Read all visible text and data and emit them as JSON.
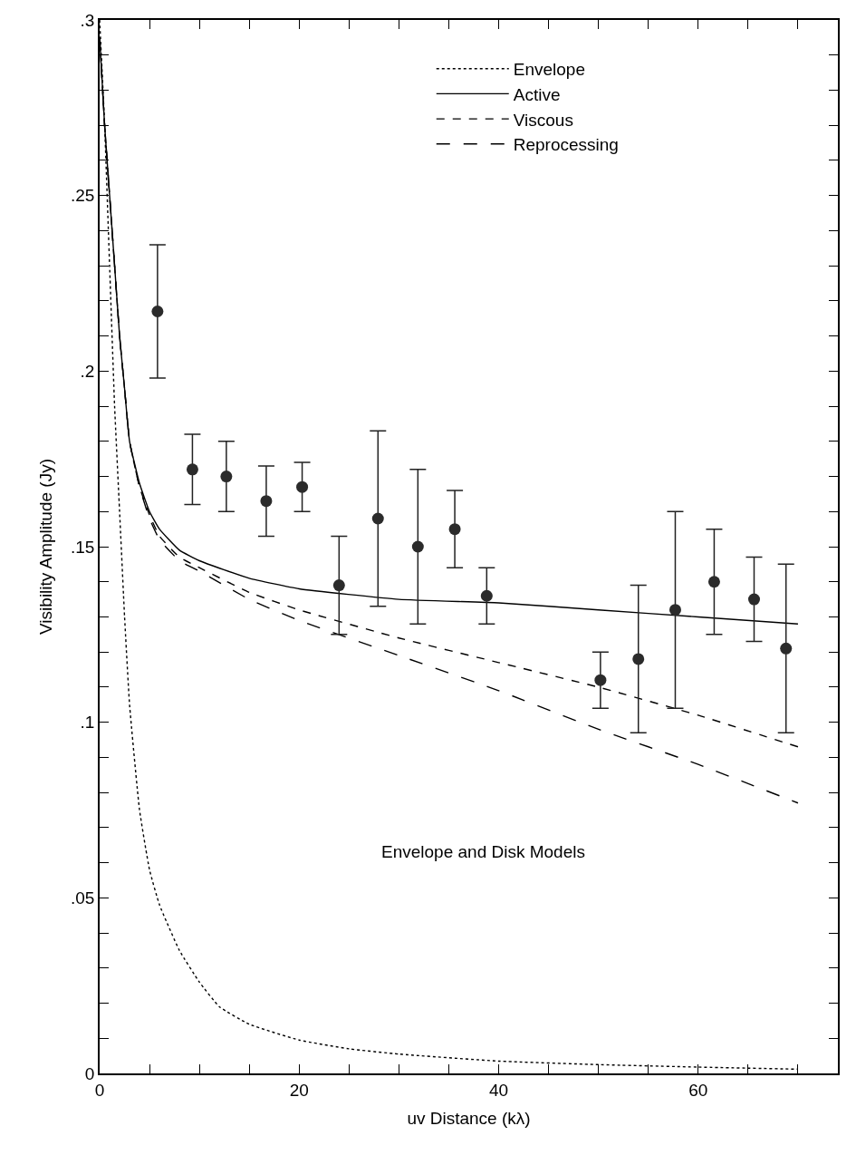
{
  "chart_data": {
    "type": "line",
    "xlabel": "uv Distance (kλ)",
    "ylabel": "Visibility Amplitude (Jy)",
    "annotations": [
      "Envelope and Disk Models"
    ],
    "xlim": [
      0,
      74
    ],
    "ylim": [
      0,
      0.3
    ],
    "xticks": [
      0,
      {
        "value": 5,
        "label": null
      },
      {
        "value": 10,
        "label": null
      },
      {
        "value": 15,
        "label": null
      },
      20,
      {
        "value": 25,
        "label": null
      },
      {
        "value": 30,
        "label": null
      },
      {
        "value": 35,
        "label": null
      },
      40,
      {
        "value": 45,
        "label": null
      },
      {
        "value": 50,
        "label": null
      },
      {
        "value": 55,
        "label": null
      },
      60,
      {
        "value": 65,
        "label": null
      },
      {
        "value": 70,
        "label": null
      }
    ],
    "yticks": [
      0,
      {
        "value": 0.01,
        "label": null
      },
      {
        "value": 0.02,
        "label": null
      },
      {
        "value": 0.03,
        "label": null
      },
      {
        "value": 0.04,
        "label": null
      },
      {
        "value": 0.05,
        "label": ".05"
      },
      {
        "value": 0.06,
        "label": null
      },
      {
        "value": 0.07,
        "label": null
      },
      {
        "value": 0.08,
        "label": null
      },
      {
        "value": 0.09,
        "label": null
      },
      {
        "value": 0.1,
        "label": ".1"
      },
      {
        "value": 0.11,
        "label": null
      },
      {
        "value": 0.12,
        "label": null
      },
      {
        "value": 0.13,
        "label": null
      },
      {
        "value": 0.14,
        "label": null
      },
      {
        "value": 0.15,
        "label": ".15"
      },
      {
        "value": 0.16,
        "label": null
      },
      {
        "value": 0.17,
        "label": null
      },
      {
        "value": 0.18,
        "label": null
      },
      {
        "value": 0.19,
        "label": null
      },
      {
        "value": 0.2,
        "label": ".2"
      },
      {
        "value": 0.21,
        "label": null
      },
      {
        "value": 0.22,
        "label": null
      },
      {
        "value": 0.23,
        "label": null
      },
      {
        "value": 0.24,
        "label": null
      },
      {
        "value": 0.25,
        "label": ".25"
      },
      {
        "value": 0.26,
        "label": null
      },
      {
        "value": 0.27,
        "label": null
      },
      {
        "value": 0.28,
        "label": null
      },
      {
        "value": 0.29,
        "label": null
      },
      {
        "value": 0.3,
        "label": ".3"
      }
    ],
    "legend": "top right",
    "marker": "none",
    "series": [
      {
        "name": "Envelope",
        "color": "#000000",
        "line_style": "dotted",
        "x": [
          0,
          0.5,
          1,
          1.5,
          2,
          2.5,
          3,
          4,
          5,
          6,
          8,
          10,
          12,
          15,
          20,
          25,
          30,
          40,
          50,
          60,
          70
        ],
        "values": [
          0.3,
          0.27,
          0.23,
          0.19,
          0.16,
          0.13,
          0.105,
          0.075,
          0.058,
          0.048,
          0.035,
          0.026,
          0.019,
          0.014,
          0.0095,
          0.007,
          0.0055,
          0.0035,
          0.0025,
          0.0018,
          0.0012
        ]
      },
      {
        "name": "Active",
        "color": "#000000",
        "line_style": "solid",
        "x": [
          0,
          0.5,
          1,
          1.5,
          2,
          2.5,
          3,
          4,
          5,
          6,
          8,
          10,
          15,
          20,
          30,
          40,
          50,
          60,
          70
        ],
        "values": [
          0.295,
          0.27,
          0.25,
          0.23,
          0.21,
          0.195,
          0.18,
          0.168,
          0.16,
          0.155,
          0.149,
          0.146,
          0.141,
          0.138,
          0.135,
          0.134,
          0.132,
          0.13,
          0.128
        ]
      },
      {
        "name": "Viscous",
        "color": "#000000",
        "line_style": "dashed",
        "x": [
          0,
          0.5,
          1,
          1.5,
          2,
          2.5,
          3,
          4,
          5,
          6,
          8,
          10,
          15,
          20,
          30,
          40,
          50,
          60,
          70
        ],
        "values": [
          0.295,
          0.27,
          0.25,
          0.23,
          0.21,
          0.195,
          0.18,
          0.167,
          0.159,
          0.153,
          0.147,
          0.144,
          0.137,
          0.132,
          0.124,
          0.117,
          0.11,
          0.102,
          0.093
        ]
      },
      {
        "name": "Reprocessing",
        "color": "#000000",
        "line_style": "longdash",
        "x": [
          0,
          0.5,
          1,
          1.5,
          2,
          2.5,
          3,
          4,
          5,
          6,
          8,
          10,
          15,
          20,
          30,
          40,
          50,
          60,
          70
        ],
        "values": [
          0.295,
          0.27,
          0.25,
          0.23,
          0.21,
          0.195,
          0.18,
          0.167,
          0.158,
          0.152,
          0.146,
          0.143,
          0.135,
          0.129,
          0.119,
          0.109,
          0.098,
          0.088,
          0.077
        ]
      },
      {
        "type": "scatter",
        "marker": "circle",
        "color": "#2b2b2b",
        "x": [
          5.8,
          9.3,
          12.7,
          16.7,
          20.3,
          24.0,
          27.9,
          31.9,
          35.6,
          38.8,
          50.2,
          54.0,
          57.7,
          61.6,
          65.6,
          68.8
        ],
        "values": [
          0.217,
          0.172,
          0.17,
          0.163,
          0.167,
          0.139,
          0.158,
          0.15,
          0.155,
          0.136,
          0.112,
          0.118,
          0.132,
          0.14,
          0.135,
          0.121
        ],
        "errors": [
          [
            0.198,
            0.236
          ],
          [
            0.162,
            0.182
          ],
          [
            0.16,
            0.18
          ],
          [
            0.153,
            0.173
          ],
          [
            0.16,
            0.174
          ],
          [
            0.125,
            0.153
          ],
          [
            0.133,
            0.183
          ],
          [
            0.128,
            0.172
          ],
          [
            0.144,
            0.166
          ],
          [
            0.128,
            0.144
          ],
          [
            0.104,
            0.12
          ],
          [
            0.097,
            0.139
          ],
          [
            0.104,
            0.16
          ],
          [
            0.125,
            0.155
          ],
          [
            0.123,
            0.147
          ],
          [
            0.097,
            0.145
          ]
        ]
      }
    ]
  }
}
